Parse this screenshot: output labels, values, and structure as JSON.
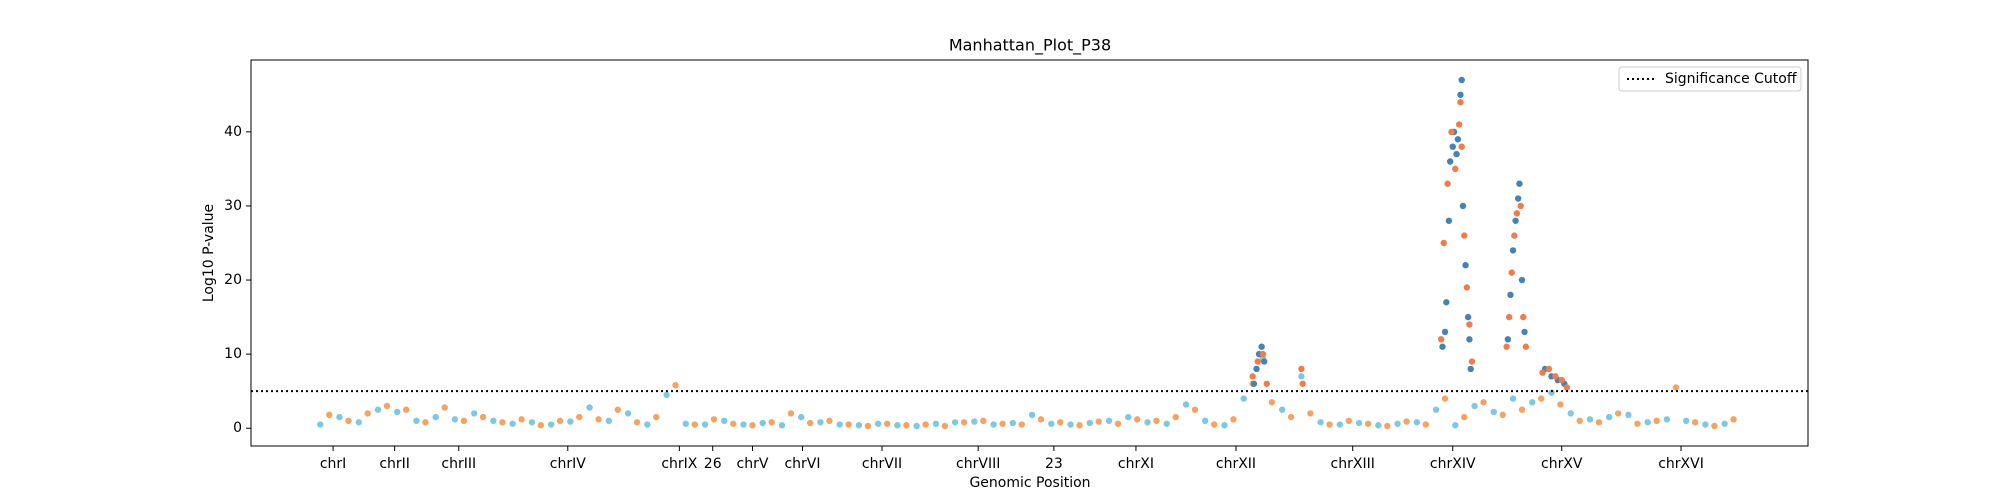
{
  "chart_data": {
    "type": "scatter",
    "title": "Manhattan_Plot_P38",
    "x_label": "Genomic Position",
    "y_label": "Log10 P-value",
    "xlim": [
      0,
      1214
    ],
    "ylim": [
      -2.4,
      49.7
    ],
    "xticks": [
      {
        "value": 64,
        "label": "chrI"
      },
      {
        "value": 112,
        "label": "chrII"
      },
      {
        "value": 162,
        "label": "chrIII"
      },
      {
        "value": 247,
        "label": "chrIV"
      },
      {
        "value": 334,
        "label": "chrIX"
      },
      {
        "value": 360,
        "label": "26"
      },
      {
        "value": 391,
        "label": "chrV"
      },
      {
        "value": 430,
        "label": "chrVI"
      },
      {
        "value": 492,
        "label": "chrVII"
      },
      {
        "value": 567,
        "label": "chrVIII"
      },
      {
        "value": 626,
        "label": "23"
      },
      {
        "value": 690,
        "label": "chrXI"
      },
      {
        "value": 768,
        "label": "chrXII"
      },
      {
        "value": 859,
        "label": "chrXIII"
      },
      {
        "value": 937,
        "label": "chrXIV"
      },
      {
        "value": 1022,
        "label": "chrXV"
      },
      {
        "value": 1115,
        "label": "chrXVI"
      }
    ],
    "yticks": [
      0,
      10,
      20,
      30,
      40
    ],
    "threshold": {
      "value": 5,
      "label": "Significance Cutoff",
      "color": "#000000"
    },
    "legend_position": "upper right",
    "series": [
      {
        "color": "#7ec8e3",
        "x": [
          54,
          69,
          84,
          99,
          114,
          129,
          144,
          159,
          174,
          189,
          204,
          219,
          234,
          249,
          264,
          279,
          294,
          309,
          324,
          339,
          354,
          369,
          384,
          399,
          414,
          429,
          444,
          459,
          474,
          489,
          504,
          519,
          534,
          549,
          564,
          579,
          594,
          609,
          624,
          639,
          654,
          669,
          684,
          699,
          714,
          729,
          744,
          759,
          774,
          789,
          804,
          819,
          834,
          849,
          864,
          879,
          894,
          909,
          924,
          939,
          954,
          969,
          984,
          999,
          1014,
          1029,
          1044,
          1059,
          1074,
          1089,
          1104,
          1119,
          1134,
          1149
        ],
        "values": [
          0.5,
          1.5,
          0.8,
          2.5,
          2.2,
          1.0,
          1.5,
          1.2,
          2.0,
          1.0,
          0.6,
          0.8,
          0.5,
          0.9,
          2.8,
          1.0,
          2.0,
          0.5,
          4.5,
          0.6,
          0.5,
          1.0,
          0.5,
          0.7,
          0.4,
          1.5,
          0.8,
          0.5,
          0.4,
          0.6,
          0.4,
          0.3,
          0.6,
          0.8,
          0.9,
          0.5,
          0.7,
          1.8,
          0.6,
          0.5,
          0.7,
          1.0,
          1.5,
          0.8,
          0.6,
          3.2,
          1.0,
          0.4,
          4.0,
          9.5,
          2.5,
          7.0,
          0.8,
          0.5,
          0.7,
          0.4,
          0.6,
          0.8,
          2.5,
          0.4,
          3.0,
          2.2,
          4.0,
          3.5,
          4.8,
          2.0,
          1.2,
          1.5,
          1.8,
          0.8,
          1.2,
          1.0,
          0.5,
          0.6
        ]
      },
      {
        "color": "#f4a460",
        "x": [
          61,
          76,
          91,
          106,
          121,
          136,
          151,
          166,
          181,
          196,
          211,
          226,
          241,
          256,
          271,
          286,
          301,
          316,
          331,
          346,
          361,
          376,
          391,
          406,
          421,
          436,
          451,
          466,
          481,
          496,
          511,
          526,
          541,
          556,
          571,
          586,
          601,
          616,
          631,
          646,
          661,
          676,
          691,
          706,
          721,
          736,
          751,
          766,
          781,
          796,
          811,
          826,
          841,
          856,
          871,
          886,
          901,
          916,
          931,
          946,
          961,
          976,
          991,
          1006,
          1021,
          1036,
          1051,
          1066,
          1081,
          1096,
          1111,
          1126,
          1141,
          1156
        ],
        "values": [
          1.8,
          1.0,
          2.0,
          3.0,
          2.5,
          0.8,
          2.8,
          1.0,
          1.5,
          0.8,
          1.2,
          0.4,
          1.0,
          1.5,
          1.2,
          2.5,
          0.8,
          1.5,
          5.8,
          0.5,
          1.2,
          0.6,
          0.4,
          0.8,
          2.0,
          0.7,
          1.0,
          0.5,
          0.3,
          0.6,
          0.4,
          0.5,
          0.3,
          0.8,
          1.0,
          0.6,
          0.5,
          1.2,
          0.8,
          0.4,
          0.9,
          0.6,
          1.2,
          1.0,
          1.5,
          2.5,
          0.5,
          1.2,
          6.0,
          3.5,
          1.5,
          2.0,
          0.5,
          1.0,
          0.6,
          0.3,
          0.9,
          0.5,
          4.0,
          1.5,
          3.5,
          1.8,
          2.5,
          4.0,
          3.2,
          1.0,
          0.8,
          2.0,
          0.6,
          1.0,
          5.5,
          0.8,
          0.3,
          1.2
        ]
      },
      {
        "color": "#4682b4",
        "x": [
          782,
          784,
          786,
          788,
          790,
          929,
          931,
          932,
          934,
          935,
          937,
          938,
          940,
          941,
          943,
          944,
          945,
          947,
          949,
          950,
          951,
          980,
          982,
          984,
          986,
          988,
          989,
          991,
          993,
          1009,
          1014,
          1019,
          1024
        ],
        "values": [
          6,
          8,
          10,
          11,
          9,
          11,
          13,
          17,
          28,
          36,
          38,
          40,
          37,
          39,
          45,
          47,
          30,
          22,
          15,
          12,
          8,
          12,
          18,
          24,
          28,
          31,
          33,
          20,
          13,
          8,
          7,
          6.5,
          6
        ]
      },
      {
        "color": "#f07c4a",
        "x": [
          781,
          785,
          789,
          792,
          819,
          820,
          928,
          930,
          933,
          936,
          939,
          942,
          943,
          944,
          946,
          948,
          950,
          952,
          979,
          981,
          983,
          985,
          987,
          990,
          992,
          994,
          1007,
          1012,
          1017,
          1022,
          1026
        ],
        "values": [
          7,
          9,
          10,
          6,
          8,
          6,
          12,
          25,
          33,
          40,
          35,
          41,
          44,
          38,
          26,
          19,
          14,
          9,
          11,
          15,
          21,
          26,
          29,
          30,
          15,
          11,
          7.5,
          8,
          7,
          6.5,
          5.5
        ]
      }
    ]
  }
}
